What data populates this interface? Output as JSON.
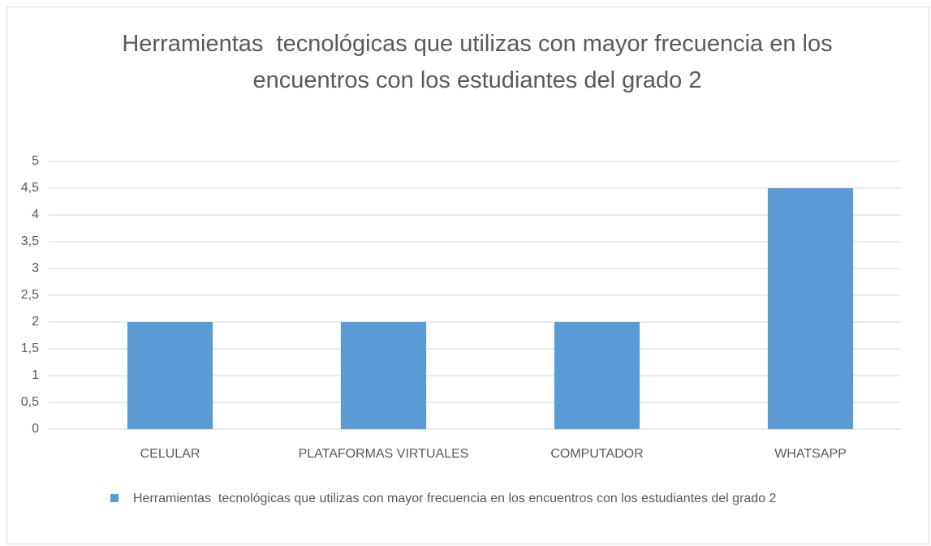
{
  "chart_data": {
    "type": "bar",
    "title": "Herramientas  tecnológicas que utilizas con mayor frecuencia en los encuentros con los estudiantes del grado 2",
    "categories": [
      "CELULAR",
      "PLATAFORMAS VIRTUALES",
      "COMPUTADOR",
      "WHATSAPP"
    ],
    "series": [
      {
        "name": "Herramientas  tecnológicas que utilizas con mayor frecuencia en los encuentros con los estudiantes del grado 2",
        "color": "#5b9bd5",
        "values": [
          2,
          2,
          2,
          4.5
        ]
      }
    ],
    "ylim": [
      0,
      5
    ],
    "yticks": [
      0,
      {
        "value": 0.5,
        "label": "0,5"
      },
      1,
      {
        "value": 1.5,
        "label": "1,5"
      },
      2,
      {
        "value": 2.5,
        "label": "2,5"
      },
      3,
      {
        "value": 3.5,
        "label": "3,5"
      },
      4,
      {
        "value": 4.5,
        "label": "4,5"
      },
      5
    ],
    "grid": true,
    "legend": "bottom"
  }
}
